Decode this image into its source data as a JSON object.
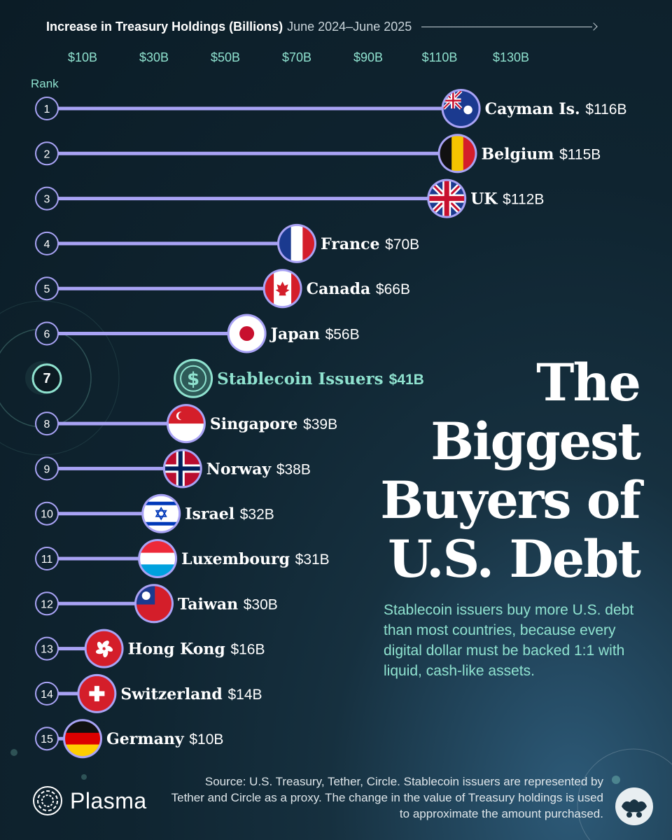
{
  "header": {
    "title": "Increase in Treasury Holdings (Billions)",
    "period": "June 2024–June 2025"
  },
  "rank_label": "Rank",
  "title": "The\nBiggest\nBuyers of\nU.S. Debt",
  "subtitle": "Stablecoin issuers buy more U.S. debt than most countries, because every digital dollar must be backed 1:1 with liquid, cash-like assets.",
  "source": "Source: U.S. Treasury, Tether, Circle. Stablecoin issuers are represented by Tether and Circle as a proxy. The change in the value of Treasury holdings is used to approximate the amount purchased.",
  "brand": "Plasma",
  "colors": {
    "bar": "#a9a3f5",
    "highlight": "#8fe2cf",
    "text": "#ffffff",
    "value_text": "#ffffff"
  },
  "chart_data": {
    "type": "bar",
    "orientation": "horizontal",
    "xlabel": "Increase in Treasury Holdings (Billions)",
    "x_ticks": [
      "$10B",
      "$30B",
      "$50B",
      "$70B",
      "$90B",
      "$110B",
      "$130B"
    ],
    "x_tick_values": [
      10,
      30,
      50,
      70,
      90,
      110,
      130
    ],
    "xlim": [
      0,
      130
    ],
    "grid": false,
    "legend": "none",
    "categories": [
      "Cayman Is.",
      "Belgium",
      "UK",
      "France",
      "Canada",
      "Japan",
      "Stablecoin Issuers",
      "Singapore",
      "Norway",
      "Israel",
      "Luxembourg",
      "Taiwan",
      "Hong Kong",
      "Switzerland",
      "Germany"
    ],
    "ranks": [
      1,
      2,
      3,
      4,
      5,
      6,
      7,
      8,
      9,
      10,
      11,
      12,
      13,
      14,
      15
    ],
    "values": [
      116,
      115,
      112,
      70,
      66,
      56,
      41,
      39,
      38,
      32,
      31,
      30,
      16,
      14,
      10
    ],
    "value_labels": [
      "$116B",
      "$115B",
      "$112B",
      "$70B",
      "$66B",
      "$56B",
      "$41B",
      "$39B",
      "$38B",
      "$32B",
      "$31B",
      "$30B",
      "$16B",
      "$14B",
      "$10B"
    ],
    "icons": [
      "cayman-flag-icon",
      "belgium-flag-icon",
      "uk-flag-icon",
      "france-flag-icon",
      "canada-flag-icon",
      "japan-flag-icon",
      "dollar-coin-icon",
      "singapore-flag-icon",
      "norway-flag-icon",
      "israel-flag-icon",
      "luxembourg-flag-icon",
      "taiwan-flag-icon",
      "hong-kong-flag-icon",
      "switzerland-flag-icon",
      "germany-flag-icon"
    ],
    "highlighted": "Stablecoin Issuers"
  }
}
